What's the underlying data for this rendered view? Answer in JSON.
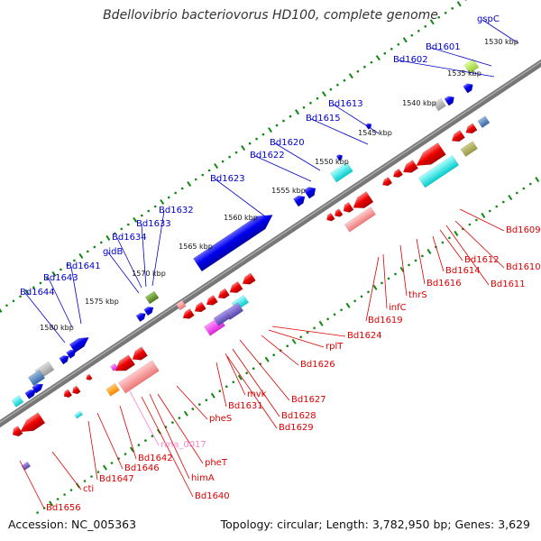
{
  "title": "Bdellovibrio bacteriovorus HD100, complete genome",
  "footer": {
    "accession_label": "Accession:",
    "accession": "NC_005363",
    "summary": "Topology: circular; Length: 3,782,950 bp; Genes: 3,629"
  },
  "colors": {
    "forward_label": "#0000cc",
    "reverse_label": "#dd0000",
    "rna_label": "#ff88cc",
    "backbone": "#777777",
    "ticks": "#118811",
    "forward_gene": "#0000ee",
    "reverse_gene": "#ee0000"
  },
  "ticks": [
    "1530 kbp",
    "1535 kbp",
    "1540 kbp",
    "1545 kbp",
    "1550 kbp",
    "1555 kbp",
    "1560 kbp",
    "1565 kbp",
    "1570 kbp",
    "1575 kbp",
    "1580 kbp"
  ],
  "upper_labels": [
    "gspC",
    "Bd1601",
    "Bd1602",
    "Bd1613",
    "Bd1615",
    "Bd1620",
    "Bd1622",
    "Bd1623",
    "Bd1632",
    "Bd1633",
    "Bd1634",
    "gidB",
    "Bd1641",
    "Bd1643",
    "Bd1644"
  ],
  "lower_labels": [
    "Bd1609",
    "Bd1610",
    "Bd1611",
    "Bd1612",
    "Bd1614",
    "Bd1616",
    "thrS",
    "infC",
    "Bd1619",
    "Bd1624",
    "rplT",
    "Bd1626",
    "Bd1627",
    "Bd1628",
    "Bd1629",
    "mvk",
    "Bd1631",
    "pheS",
    "pheT",
    "rrna_0017",
    "himA",
    "Bd1640",
    "Bd1642",
    "Bd1646",
    "Bd1647",
    "cti",
    "Bd1656"
  ]
}
